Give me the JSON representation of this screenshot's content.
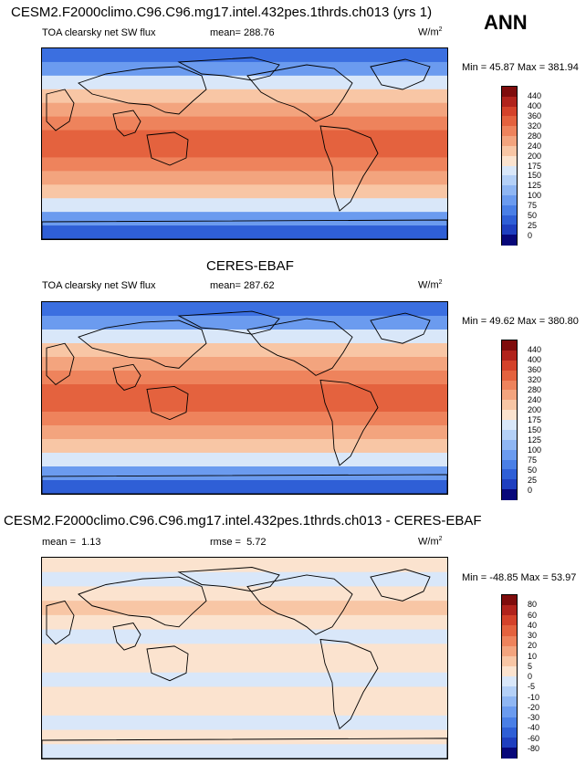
{
  "header": {
    "title": "CESM2.F2000climo.C96.C96.mg17.intel.432pes.1thrds.ch013 (yrs 1)",
    "season": "ANN"
  },
  "chart_data": [
    {
      "type": "heatmap",
      "panel_title": "CESM2.F2000climo.C96.C96.mg17.intel.432pes.1thrds.ch013 (yrs 1)",
      "variable": "TOA clearsky net SW flux",
      "mean_label": "mean=",
      "mean": "288.76",
      "units_base": "W/m",
      "units_exp": "2",
      "min_label": "Min =",
      "min": "45.87",
      "max_label": "Max =",
      "max": "381.94",
      "levels": [
        "0",
        "25",
        "50",
        "75",
        "100",
        "125",
        "150",
        "175",
        "200",
        "240",
        "280",
        "320",
        "360",
        "400",
        "440"
      ],
      "colors": [
        "#08087a",
        "#1f3fbf",
        "#2f5fd6",
        "#4a7fe6",
        "#6b9bef",
        "#8fb6f3",
        "#b4d0f7",
        "#d9e7f9",
        "#fbe3cf",
        "#f8c6a5",
        "#f3a47e",
        "#ee835c",
        "#e4623e",
        "#d4422a",
        "#b1231c",
        "#7f0c0c"
      ],
      "band_colors_ns": [
        "#3b6fe0",
        "#6b9bef",
        "#d9e7f9",
        "#f8c6a5",
        "#f3a47e",
        "#ee835c",
        "#e4623e",
        "#e4623e",
        "#ee835c",
        "#f3a47e",
        "#f8c6a5",
        "#d9e7f9",
        "#6b9bef",
        "#2f5fd6"
      ]
    },
    {
      "type": "heatmap",
      "panel_title": "CERES-EBAF",
      "variable": "TOA clearsky net SW flux",
      "mean_label": "mean=",
      "mean": "287.62",
      "units_base": "W/m",
      "units_exp": "2",
      "min_label": "Min =",
      "min": "49.62",
      "max_label": "Max =",
      "max": "380.80",
      "levels": [
        "0",
        "25",
        "50",
        "75",
        "100",
        "125",
        "150",
        "175",
        "200",
        "240",
        "280",
        "320",
        "360",
        "400",
        "440"
      ],
      "colors": [
        "#08087a",
        "#1f3fbf",
        "#2f5fd6",
        "#4a7fe6",
        "#6b9bef",
        "#8fb6f3",
        "#b4d0f7",
        "#d9e7f9",
        "#fbe3cf",
        "#f8c6a5",
        "#f3a47e",
        "#ee835c",
        "#e4623e",
        "#d4422a",
        "#b1231c",
        "#7f0c0c"
      ],
      "band_colors_ns": [
        "#3b6fe0",
        "#6b9bef",
        "#d9e7f9",
        "#f8c6a5",
        "#f3a47e",
        "#ee835c",
        "#e4623e",
        "#e4623e",
        "#ee835c",
        "#f3a47e",
        "#f8c6a5",
        "#d9e7f9",
        "#6b9bef",
        "#2f5fd6"
      ]
    },
    {
      "type": "heatmap",
      "panel_title": "CESM2.F2000climo.C96.C96.mg17.intel.432pes.1thrds.ch013 - CERES-EBAF",
      "variable": "",
      "mean_label": "mean =",
      "mean": "1.13",
      "rmse_label": "rmse =",
      "rmse": "5.72",
      "units_base": "W/m",
      "units_exp": "2",
      "min_label": "Min =",
      "min": "-48.85",
      "max_label": "Max =",
      "max": "53.97",
      "levels": [
        "-80",
        "-60",
        "-40",
        "-30",
        "-20",
        "-10",
        "-5",
        "0",
        "5",
        "10",
        "20",
        "30",
        "40",
        "60",
        "80"
      ],
      "colors": [
        "#08087a",
        "#1f3fbf",
        "#2f5fd6",
        "#4a7fe6",
        "#6b9bef",
        "#8fb6f3",
        "#b4d0f7",
        "#d9e7f9",
        "#fbe3cf",
        "#f8c6a5",
        "#f3a47e",
        "#ee835c",
        "#e4623e",
        "#d4422a",
        "#b1231c",
        "#7f0c0c"
      ],
      "band_colors_ns": [
        "#fbe3cf",
        "#d9e7f9",
        "#fbe3cf",
        "#f8c6a5",
        "#fbe3cf",
        "#d9e7f9",
        "#fbe3cf",
        "#fbe3cf",
        "#d9e7f9",
        "#fbe3cf",
        "#fbe3cf",
        "#d9e7f9",
        "#fbe3cf",
        "#d9e7f9"
      ]
    }
  ]
}
